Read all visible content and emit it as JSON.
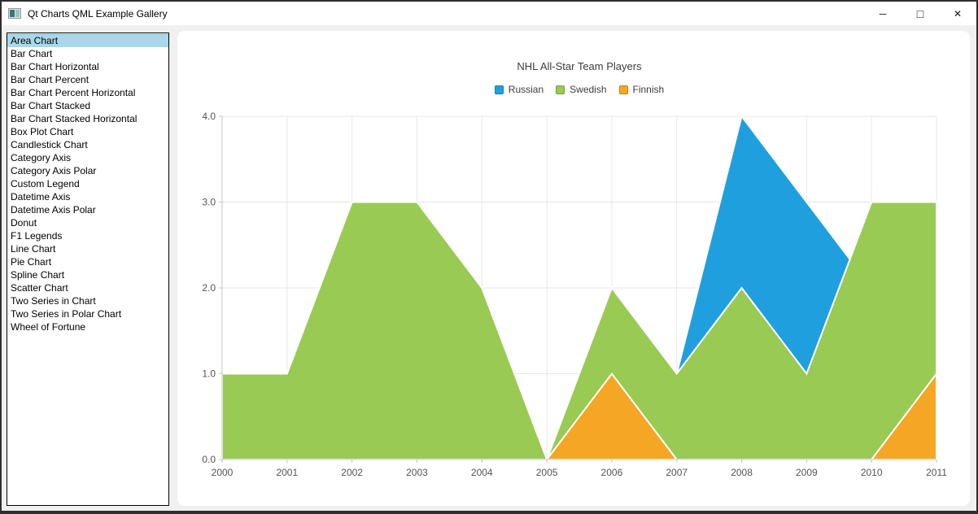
{
  "window": {
    "title": "Qt Charts QML Example Gallery",
    "icon": "qt-app-icon",
    "controls": {
      "minimize": "─",
      "maximize": "□",
      "close": "✕"
    }
  },
  "sidebar": {
    "items": [
      {
        "label": "Area Chart",
        "selected": true
      },
      {
        "label": "Bar Chart",
        "selected": false
      },
      {
        "label": "Bar Chart Horizontal",
        "selected": false
      },
      {
        "label": "Bar Chart Percent",
        "selected": false
      },
      {
        "label": "Bar Chart Percent Horizontal",
        "selected": false
      },
      {
        "label": "Bar Chart Stacked",
        "selected": false
      },
      {
        "label": "Bar Chart Stacked Horizontal",
        "selected": false
      },
      {
        "label": "Box Plot Chart",
        "selected": false
      },
      {
        "label": "Candlestick Chart",
        "selected": false
      },
      {
        "label": "Category Axis",
        "selected": false
      },
      {
        "label": "Category Axis Polar",
        "selected": false
      },
      {
        "label": "Custom Legend",
        "selected": false
      },
      {
        "label": "Datetime Axis",
        "selected": false
      },
      {
        "label": "Datetime Axis Polar",
        "selected": false
      },
      {
        "label": "Donut",
        "selected": false
      },
      {
        "label": "F1 Legends",
        "selected": false
      },
      {
        "label": "Line Chart",
        "selected": false
      },
      {
        "label": "Pie Chart",
        "selected": false
      },
      {
        "label": "Spline Chart",
        "selected": false
      },
      {
        "label": "Scatter Chart",
        "selected": false
      },
      {
        "label": "Two Series in Chart",
        "selected": false
      },
      {
        "label": "Two Series in Polar Chart",
        "selected": false
      },
      {
        "label": "Wheel of Fortune",
        "selected": false
      }
    ],
    "selection_color": "#a8d8ea"
  },
  "chart_data": {
    "type": "area",
    "title": "NHL All-Star Team Players",
    "x": [
      2000,
      2001,
      2002,
      2003,
      2004,
      2005,
      2006,
      2007,
      2008,
      2009,
      2010,
      2011
    ],
    "xticks": [
      "2000",
      "2001",
      "2002",
      "2003",
      "2004",
      "2005",
      "2006",
      "2007",
      "2008",
      "2009",
      "2010",
      "2011"
    ],
    "yticks": [
      "0.0",
      "1.0",
      "2.0",
      "3.0",
      "4.0"
    ],
    "ylim": [
      0,
      4
    ],
    "series": [
      {
        "name": "Russian",
        "color": "#209fdf",
        "values": [
          1,
          1,
          1,
          1,
          1,
          0,
          1,
          1,
          4,
          3,
          2,
          1
        ]
      },
      {
        "name": "Swedish",
        "color": "#99ca53",
        "values": [
          1,
          1,
          3,
          3,
          2,
          0,
          2,
          1,
          2,
          1,
          3,
          3
        ]
      },
      {
        "name": "Finnish",
        "color": "#f6a625",
        "values": [
          0,
          0,
          0,
          0,
          0,
          0,
          1,
          0,
          0,
          0,
          0,
          1
        ]
      }
    ],
    "legend_position": "top",
    "grid": true,
    "grid_color": "#e7e7e7",
    "axis_color": "#c4c4c4",
    "label_color": "#545454",
    "area_border_color": "#ffffff"
  }
}
